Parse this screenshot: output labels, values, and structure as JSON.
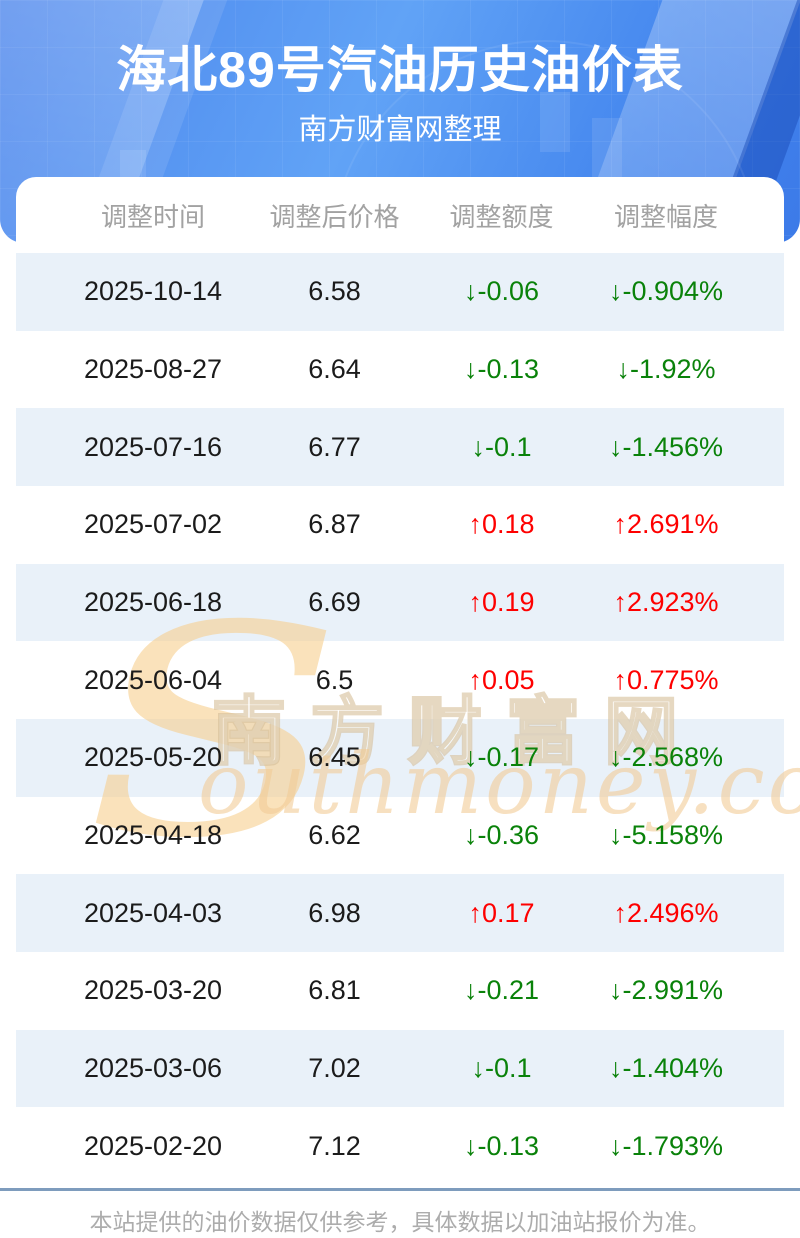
{
  "hero": {
    "title": "海北89号汽油历史油价表",
    "subtitle": "南方财富网整理"
  },
  "table": {
    "columns": [
      "调整时间",
      "调整后价格",
      "调整额度",
      "调整幅度"
    ],
    "rows": [
      {
        "date": "2025-10-14",
        "price": "6.58",
        "change": "↓-0.06",
        "pct": "↓-0.904%",
        "trend": "down"
      },
      {
        "date": "2025-08-27",
        "price": "6.64",
        "change": "↓-0.13",
        "pct": "↓-1.92%",
        "trend": "down"
      },
      {
        "date": "2025-07-16",
        "price": "6.77",
        "change": "↓-0.1",
        "pct": "↓-1.456%",
        "trend": "down"
      },
      {
        "date": "2025-07-02",
        "price": "6.87",
        "change": "↑0.18",
        "pct": "↑2.691%",
        "trend": "up"
      },
      {
        "date": "2025-06-18",
        "price": "6.69",
        "change": "↑0.19",
        "pct": "↑2.923%",
        "trend": "up"
      },
      {
        "date": "2025-06-04",
        "price": "6.5",
        "change": "↑0.05",
        "pct": "↑0.775%",
        "trend": "up"
      },
      {
        "date": "2025-05-20",
        "price": "6.45",
        "change": "↓-0.17",
        "pct": "↓-2.568%",
        "trend": "down"
      },
      {
        "date": "2025-04-18",
        "price": "6.62",
        "change": "↓-0.36",
        "pct": "↓-5.158%",
        "trend": "down"
      },
      {
        "date": "2025-04-03",
        "price": "6.98",
        "change": "↑0.17",
        "pct": "↑2.496%",
        "trend": "up"
      },
      {
        "date": "2025-03-20",
        "price": "6.81",
        "change": "↓-0.21",
        "pct": "↓-2.991%",
        "trend": "down"
      },
      {
        "date": "2025-03-06",
        "price": "7.02",
        "change": "↓-0.1",
        "pct": "↓-1.404%",
        "trend": "down"
      },
      {
        "date": "2025-02-20",
        "price": "7.12",
        "change": "↓-0.13",
        "pct": "↓-1.793%",
        "trend": "down"
      }
    ]
  },
  "watermark": {
    "s": "S",
    "cn": "南方财富网",
    "en": "outhmoney.com"
  },
  "footer": {
    "disclaimer": "本站提供的油价数据仅供参考，具体数据以加油站报价为准。"
  },
  "colors": {
    "up": "#fe0000",
    "down": "#0a820a",
    "accent": "#4a86ec",
    "row_alt": "#e9f1f9",
    "footer_line": "#7e9cbd"
  }
}
